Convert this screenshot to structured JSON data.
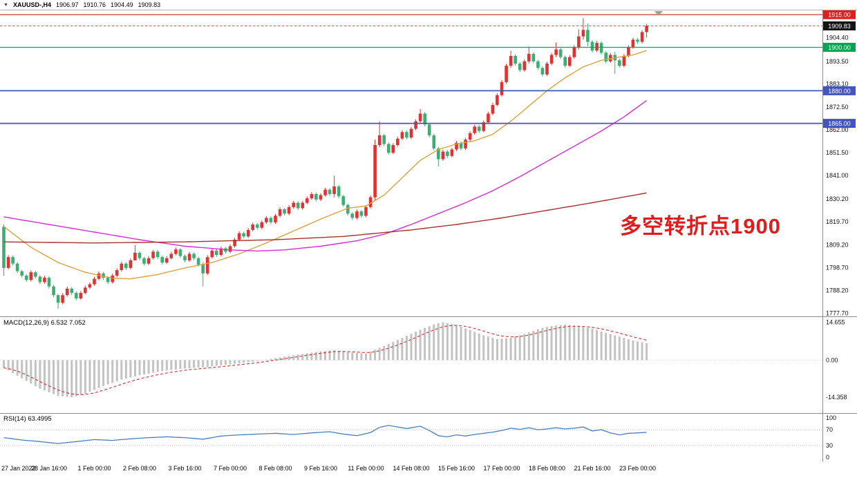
{
  "title_bar": {
    "marker": "▼",
    "symbol_timeframe": "XAUUSD-,H4",
    "open": "1906.97",
    "high": "1910.76",
    "low": "1904.49",
    "close": "1909.83"
  },
  "panels": {
    "macd_label": "MACD(12,26,9) 6.532 7.052",
    "rsi_label": "RSI(14) 63.4995"
  },
  "annotation": {
    "text": "多空转折点1900",
    "color": "#e21c1c"
  },
  "time_axis": {
    "labels": [
      {
        "i": 0,
        "t": "27 Jan 2022"
      },
      {
        "i": 10,
        "t": "28 Jan 16:00"
      },
      {
        "i": 20,
        "t": "1 Feb 00:00"
      },
      {
        "i": 30,
        "t": "2 Feb 08:00"
      },
      {
        "i": 40,
        "t": "3 Feb 16:00"
      },
      {
        "i": 50,
        "t": "7 Feb 00:00"
      },
      {
        "i": 60,
        "t": "8 Feb 08:00"
      },
      {
        "i": 70,
        "t": "9 Feb 16:00"
      },
      {
        "i": 80,
        "t": "11 Feb 00:00"
      },
      {
        "i": 90,
        "t": "14 Feb 08:00"
      },
      {
        "i": 100,
        "t": "15 Feb 16:00"
      },
      {
        "i": 110,
        "t": "17 Feb 00:00"
      },
      {
        "i": 120,
        "t": "18 Feb 08:00"
      },
      {
        "i": 130,
        "t": "21 Feb 16:00"
      },
      {
        "i": 140,
        "t": "23 Feb 00:00"
      }
    ]
  },
  "chart_data": [
    {
      "type": "candlestick",
      "symbol": "XAUUSD",
      "timeframe": "H4",
      "up_color": "#e03232",
      "down_color": "#3cae73",
      "ylim": [
        1776.4,
        1917.3
      ],
      "y_axis_ticks": [
        1904.4,
        1893.5,
        1883.1,
        1872.5,
        1862.0,
        1851.5,
        1841.0,
        1830.2,
        1819.7,
        1809.2,
        1798.7,
        1788.2,
        1777.7
      ],
      "first_open": 1817.5,
      "open_equals_prev_close": true,
      "closes": [
        1798.5,
        1803.5,
        1800.5,
        1797.0,
        1795.0,
        1793.0,
        1796.5,
        1794.5,
        1792.0,
        1794.0,
        1790.0,
        1786.0,
        1782.5,
        1786.0,
        1789.0,
        1787.0,
        1784.5,
        1787.0,
        1789.5,
        1791.0,
        1793.5,
        1796.0,
        1794.0,
        1792.0,
        1795.0,
        1797.5,
        1800.5,
        1798.5,
        1802.0,
        1805.5,
        1803.0,
        1800.5,
        1803.0,
        1806.0,
        1803.5,
        1801.0,
        1803.0,
        1805.0,
        1807.0,
        1804.0,
        1802.0,
        1805.0,
        1803.0,
        1800.0,
        1796.0,
        1803.5,
        1806.5,
        1804.5,
        1807.5,
        1806.0,
        1808.5,
        1811.5,
        1814.5,
        1813.0,
        1816.0,
        1818.5,
        1817.0,
        1819.5,
        1821.5,
        1819.5,
        1822.5,
        1825.5,
        1823.5,
        1826.5,
        1828.5,
        1826.0,
        1828.5,
        1830.5,
        1832.5,
        1830.0,
        1832.0,
        1834.5,
        1832.5,
        1836.0,
        1831.5,
        1827.5,
        1823.5,
        1821.5,
        1824.5,
        1822.5,
        1826.5,
        1831.0,
        1855.0,
        1859.5,
        1855.5,
        1851.5,
        1855.0,
        1858.0,
        1861.0,
        1858.5,
        1862.5,
        1866.0,
        1869.5,
        1864.5,
        1859.5,
        1853.5,
        1848.5,
        1852.0,
        1850.0,
        1853.0,
        1856.0,
        1853.5,
        1857.5,
        1860.5,
        1863.5,
        1861.5,
        1865.5,
        1869.5,
        1873.5,
        1878.0,
        1884.0,
        1891.5,
        1896.0,
        1892.5,
        1889.5,
        1893.5,
        1897.0,
        1893.5,
        1890.5,
        1887.5,
        1892.5,
        1896.5,
        1899.0,
        1895.5,
        1891.5,
        1895.5,
        1900.0,
        1905.0,
        1908.0,
        1902.5,
        1898.5,
        1902.0,
        1897.5,
        1893.5,
        1896.5,
        1894.0,
        1891.5,
        1896.0,
        1900.0,
        1903.5,
        1902.5,
        1907.0,
        1909.83
      ],
      "default_wick": {
        "up_high": 0.9,
        "up_low": 0.7,
        "down_high": 0.7,
        "down_low": 0.9
      },
      "wick_overrides": {
        "0": [
          1818.5,
          1795.0
        ],
        "12": [
          1786.5,
          1779.8
        ],
        "29": [
          1809.0,
          1802.0
        ],
        "44": [
          1801.2,
          1790.0
        ],
        "73": [
          1841.0,
          1831.0
        ],
        "82": [
          1857.5,
          1829.5
        ],
        "83": [
          1866.0,
          1854.0
        ],
        "92": [
          1871.6,
          1865.0
        ],
        "96": [
          1854.2,
          1845.2
        ],
        "112": [
          1898.4,
          1890.5
        ],
        "116": [
          1900.3,
          1892.5
        ],
        "122": [
          1902.2,
          1895.5
        ],
        "127": [
          1908.2,
          1899.0
        ],
        "128": [
          1913.4,
          1903.5
        ],
        "129": [
          1911.0,
          1900.5
        ],
        "135": [
          1898.0,
          1887.8
        ],
        "142": [
          1910.76,
          1904.49
        ]
      },
      "hlines": [
        {
          "price": 1915.0,
          "label": "1915.00",
          "line_color": "#c42525",
          "badge_color": "#e01e1e",
          "width": 1.2
        },
        {
          "price": 1900.0,
          "label": "1900.00",
          "line_color": "#00a651",
          "badge_color": "#00a651",
          "width": 1.2
        },
        {
          "price": 1880.0,
          "label": "1880.00",
          "line_color": "#4353c0",
          "badge_color": "#4353c0",
          "width": 1.8
        },
        {
          "price": 1865.0,
          "label": "1865.00",
          "line_color": "#4353c0",
          "badge_color": "#4353c0",
          "width": 1.8
        }
      ],
      "current_price": {
        "value": 1909.83,
        "label": "1909.83",
        "badge_color": "#141414",
        "line_color": "#e01e1e"
      },
      "ma_lines": [
        {
          "name": "ma-fast-line",
          "color": "#e2a03a",
          "points": [
            [
              0,
              1817.5
            ],
            [
              6,
              1808
            ],
            [
              12,
              1801
            ],
            [
              18,
              1796.5
            ],
            [
              24,
              1793.8
            ],
            [
              28,
              1793.5
            ],
            [
              34,
              1795.5
            ],
            [
              40,
              1798.5
            ],
            [
              46,
              1801
            ],
            [
              52,
              1805
            ],
            [
              58,
              1810
            ],
            [
              64,
              1815.5
            ],
            [
              70,
              1821
            ],
            [
              76,
              1826
            ],
            [
              80,
              1827
            ],
            [
              84,
              1832
            ],
            [
              88,
              1840
            ],
            [
              92,
              1848
            ],
            [
              96,
              1853
            ],
            [
              100,
              1855.5
            ],
            [
              104,
              1857
            ],
            [
              108,
              1860
            ],
            [
              112,
              1866
            ],
            [
              116,
              1873
            ],
            [
              120,
              1880
            ],
            [
              124,
              1886
            ],
            [
              128,
              1891
            ],
            [
              132,
              1894
            ],
            [
              136,
              1895.5
            ],
            [
              139,
              1896.5
            ],
            [
              142,
              1898.5
            ]
          ]
        },
        {
          "name": "ma-mid-line",
          "color": "#d62bd6",
          "points": [
            [
              0,
              1822
            ],
            [
              10,
              1818.5
            ],
            [
              20,
              1815
            ],
            [
              30,
              1811.5
            ],
            [
              40,
              1808.5
            ],
            [
              50,
              1806.8
            ],
            [
              56,
              1806.3
            ],
            [
              62,
              1806.8
            ],
            [
              70,
              1808.5
            ],
            [
              78,
              1811
            ],
            [
              84,
              1814
            ],
            [
              90,
              1818.5
            ],
            [
              96,
              1823.5
            ],
            [
              102,
              1828.5
            ],
            [
              108,
              1834
            ],
            [
              114,
              1840.5
            ],
            [
              120,
              1847.5
            ],
            [
              126,
              1854.5
            ],
            [
              132,
              1861.5
            ],
            [
              137,
              1868
            ],
            [
              142,
              1875.5
            ]
          ]
        },
        {
          "name": "ma-slow-line",
          "color": "#a93030",
          "points": [
            [
              0,
              1810.5
            ],
            [
              20,
              1810
            ],
            [
              40,
              1810.5
            ],
            [
              60,
              1811.5
            ],
            [
              75,
              1813
            ],
            [
              90,
              1816
            ],
            [
              100,
              1818.5
            ],
            [
              110,
              1821.5
            ],
            [
              120,
              1825
            ],
            [
              130,
              1828.5
            ],
            [
              142,
              1833
            ]
          ]
        }
      ],
      "shift_marker_color": "#9e9e9e"
    },
    {
      "type": "macd",
      "label": "MACD(12,26,9)",
      "macd_value": 6.532,
      "signal_value": 7.052,
      "ylim": [
        -19.9,
        16.4
      ],
      "y_ticks": [
        {
          "v": 14.655,
          "t": "14.655"
        },
        {
          "v": 0,
          "t": "0.00"
        },
        {
          "v": -14.358,
          "t": "-14.358"
        }
      ],
      "hist_color": "#c2c2c2",
      "signal_color": "#cf2e2e",
      "points": [
        [
          0,
          -3
        ],
        [
          4,
          -7
        ],
        [
          8,
          -11
        ],
        [
          12,
          -13.8
        ],
        [
          15,
          -14.3
        ],
        [
          18,
          -13
        ],
        [
          22,
          -10
        ],
        [
          26,
          -7.5
        ],
        [
          30,
          -5.8
        ],
        [
          35,
          -4.2
        ],
        [
          40,
          -3.2
        ],
        [
          45,
          -2.6
        ],
        [
          50,
          -1.6
        ],
        [
          55,
          -0.6
        ],
        [
          60,
          0.8
        ],
        [
          65,
          2.2
        ],
        [
          70,
          3.4
        ],
        [
          73,
          3.9
        ],
        [
          76,
          3.1
        ],
        [
          80,
          2.6
        ],
        [
          84,
          5.5
        ],
        [
          88,
          8.6
        ],
        [
          92,
          11.8
        ],
        [
          95,
          13.8
        ],
        [
          97,
          14.65
        ],
        [
          100,
          13.6
        ],
        [
          103,
          11.6
        ],
        [
          106,
          9.6
        ],
        [
          109,
          8.2
        ],
        [
          112,
          8.6
        ],
        [
          115,
          10.1
        ],
        [
          118,
          12
        ],
        [
          121,
          13.2
        ],
        [
          124,
          13.8
        ],
        [
          127,
          13.1
        ],
        [
          130,
          12.1
        ],
        [
          133,
          10.6
        ],
        [
          136,
          9.1
        ],
        [
          139,
          7.6
        ],
        [
          142,
          6.53
        ]
      ]
    },
    {
      "type": "line",
      "label": "RSI(14)",
      "value": 63.4995,
      "ylim": [
        -5,
        107
      ],
      "y_ticks": [
        {
          "v": 100,
          "t": "100"
        },
        {
          "v": 70,
          "t": "70"
        },
        {
          "v": 30,
          "t": "30"
        },
        {
          "v": 0,
          "t": "0"
        }
      ],
      "levels": [
        70,
        30
      ],
      "line_color": "#4a7dbd",
      "points": [
        [
          0,
          50
        ],
        [
          4,
          44
        ],
        [
          8,
          40
        ],
        [
          12,
          35
        ],
        [
          16,
          40
        ],
        [
          20,
          45
        ],
        [
          24,
          43
        ],
        [
          28,
          47
        ],
        [
          32,
          50
        ],
        [
          36,
          52
        ],
        [
          40,
          50
        ],
        [
          44,
          46
        ],
        [
          48,
          54
        ],
        [
          52,
          57
        ],
        [
          56,
          59
        ],
        [
          60,
          61
        ],
        [
          64,
          58
        ],
        [
          68,
          62
        ],
        [
          72,
          65
        ],
        [
          75,
          59
        ],
        [
          78,
          55
        ],
        [
          81,
          63
        ],
        [
          83,
          76
        ],
        [
          85,
          81
        ],
        [
          87,
          77
        ],
        [
          89,
          73
        ],
        [
          92,
          79
        ],
        [
          94,
          68
        ],
        [
          96,
          55
        ],
        [
          98,
          52
        ],
        [
          100,
          57
        ],
        [
          102,
          54
        ],
        [
          104,
          58
        ],
        [
          106,
          61
        ],
        [
          108,
          64
        ],
        [
          110,
          68
        ],
        [
          112,
          74
        ],
        [
          114,
          71
        ],
        [
          116,
          75
        ],
        [
          118,
          70
        ],
        [
          120,
          72
        ],
        [
          122,
          75
        ],
        [
          124,
          72
        ],
        [
          126,
          74
        ],
        [
          128,
          77
        ],
        [
          130,
          67
        ],
        [
          132,
          70
        ],
        [
          134,
          62
        ],
        [
          136,
          57
        ],
        [
          138,
          61
        ],
        [
          140,
          62
        ],
        [
          142,
          63.5
        ]
      ]
    }
  ]
}
